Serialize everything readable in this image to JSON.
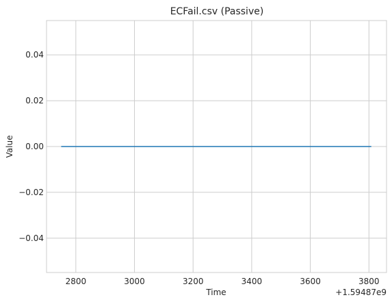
{
  "chart_data": {
    "type": "line",
    "title": "ECFail.csv (Passive)",
    "xlabel": "Time",
    "ylabel": "Value",
    "x_offset_label": "+1.59487e9",
    "xlim": [
      2700,
      3860
    ],
    "ylim": [
      -0.055,
      0.055
    ],
    "x_ticks": [
      2800,
      3000,
      3200,
      3400,
      3600,
      3800
    ],
    "y_ticks": [
      -0.04,
      -0.02,
      0.0,
      0.02,
      0.04
    ],
    "x_tick_labels": [
      "2800",
      "3000",
      "3200",
      "3400",
      "3600",
      "3800"
    ],
    "y_tick_labels": [
      "−0.04",
      "−0.02",
      "0.00",
      "0.02",
      "0.04"
    ],
    "grid": true,
    "series": [
      {
        "color": "#1f77b4",
        "x": [
          2750,
          3808
        ],
        "y": [
          0,
          0
        ]
      }
    ]
  }
}
